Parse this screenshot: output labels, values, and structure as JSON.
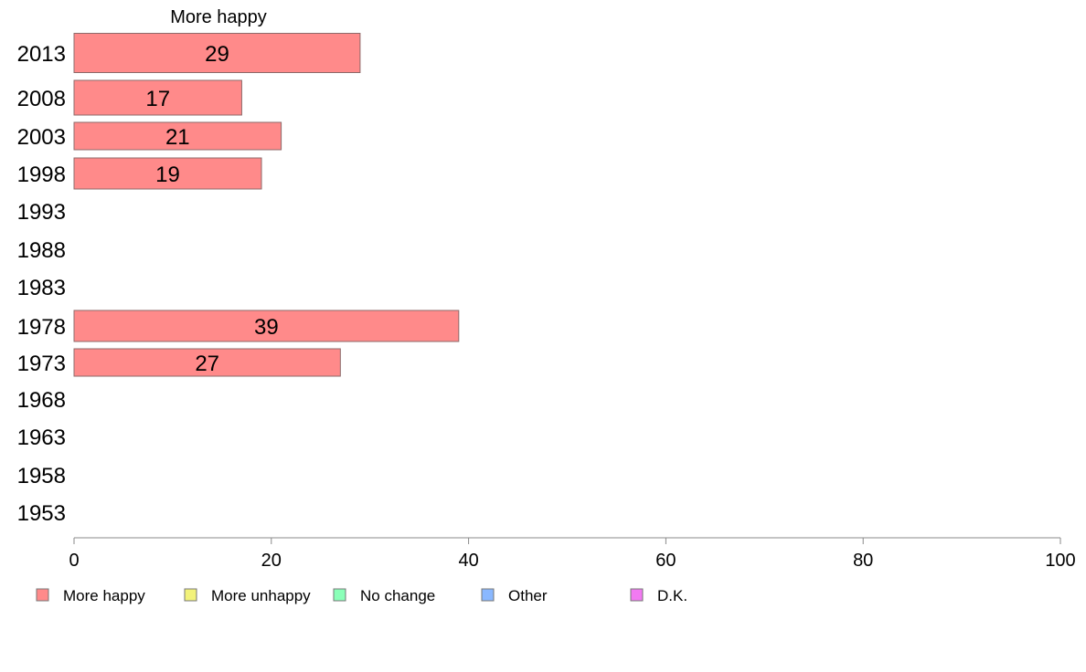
{
  "chart_data": {
    "type": "bar",
    "orientation": "horizontal",
    "series_title": "More happy",
    "categories": [
      "2013",
      "2008",
      "2003",
      "1998",
      "1993",
      "1988",
      "1983",
      "1978",
      "1973",
      "1968",
      "1963",
      "1958",
      "1953"
    ],
    "series": [
      {
        "name": "More happy",
        "values": [
          29,
          17,
          21,
          19,
          null,
          null,
          null,
          39,
          27,
          null,
          null,
          null,
          null
        ],
        "color": "#ff8a8a"
      }
    ],
    "xlim": [
      0,
      100
    ],
    "xticks": [
      0,
      20,
      40,
      60,
      80,
      100
    ],
    "xlabel": "",
    "ylabel": "",
    "grid": false,
    "legend": {
      "placement": "bottom",
      "entries": [
        {
          "label": "More happy",
          "color": "#ff8a8a"
        },
        {
          "label": "More unhappy",
          "color": "#f2f27a"
        },
        {
          "label": "No change",
          "color": "#8affb8"
        },
        {
          "label": "Other",
          "color": "#8ab8ff"
        },
        {
          "label": "D.K.",
          "color": "#f27af2"
        }
      ]
    },
    "bar_edge_color": "#8c6a6a",
    "axis_color": "#888888"
  }
}
